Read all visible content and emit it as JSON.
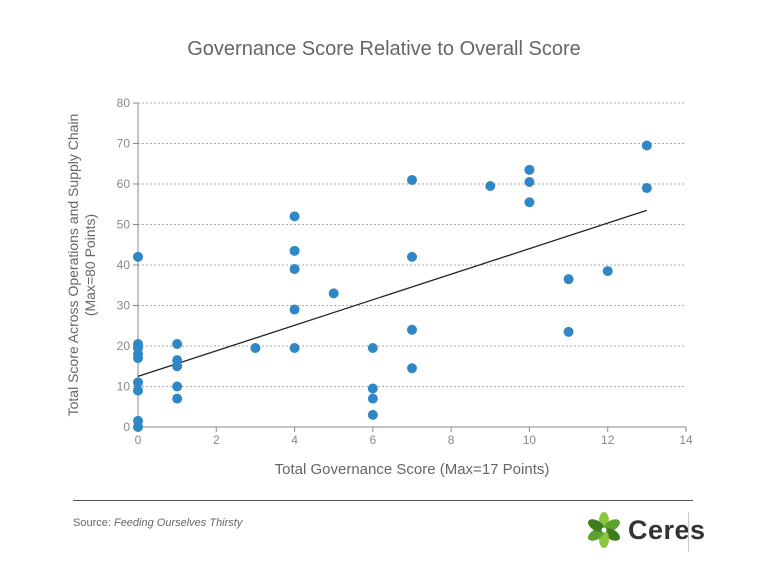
{
  "chart_data": {
    "type": "scatter",
    "title": "Governance Score Relative to Overall Score",
    "xlabel": "Total Governance Score (Max=17 Points)",
    "ylabel_lines": [
      "Total Score Across Operations and Supply Chain",
      "(Max=80 Points)"
    ],
    "xlim": [
      0,
      14
    ],
    "ylim": [
      0,
      80
    ],
    "xticks": [
      0,
      2,
      4,
      6,
      8,
      10,
      12,
      14
    ],
    "yticks": [
      0,
      10,
      20,
      30,
      40,
      50,
      60,
      70,
      80
    ],
    "grid": true,
    "grid_style": "dotted horizontal",
    "marker_color": "#2f87c6",
    "trendline": {
      "x": [
        0,
        13
      ],
      "y": [
        12.5,
        53.5
      ]
    },
    "points": [
      [
        0,
        42
      ],
      [
        0,
        20.5
      ],
      [
        0,
        19.5
      ],
      [
        0,
        18
      ],
      [
        0,
        17
      ],
      [
        0,
        11
      ],
      [
        0,
        9
      ],
      [
        0,
        1.5
      ],
      [
        0,
        0
      ],
      [
        1,
        20.5
      ],
      [
        1,
        16.5
      ],
      [
        1,
        15
      ],
      [
        1,
        10
      ],
      [
        1,
        7
      ],
      [
        3,
        19.5
      ],
      [
        4,
        52
      ],
      [
        4,
        43.5
      ],
      [
        4,
        39
      ],
      [
        4,
        29
      ],
      [
        4,
        19.5
      ],
      [
        5,
        33
      ],
      [
        6,
        19.5
      ],
      [
        6,
        9.5
      ],
      [
        6,
        7
      ],
      [
        6,
        3
      ],
      [
        7,
        61
      ],
      [
        7,
        42
      ],
      [
        7,
        24
      ],
      [
        7,
        14.5
      ],
      [
        9,
        59.5
      ],
      [
        10,
        63.5
      ],
      [
        10,
        60.5
      ],
      [
        10,
        55.5
      ],
      [
        11,
        36.5
      ],
      [
        11,
        23.5
      ],
      [
        12,
        38.5
      ],
      [
        13,
        69.5
      ],
      [
        13,
        59
      ]
    ]
  },
  "footer": {
    "source_prefix": "Source: ",
    "source_title": "Feeding Ourselves Thirsty",
    "logo_text": "Ceres",
    "logo_colors": [
      "#8cc63f",
      "#5da130",
      "#3e7d1e"
    ]
  }
}
